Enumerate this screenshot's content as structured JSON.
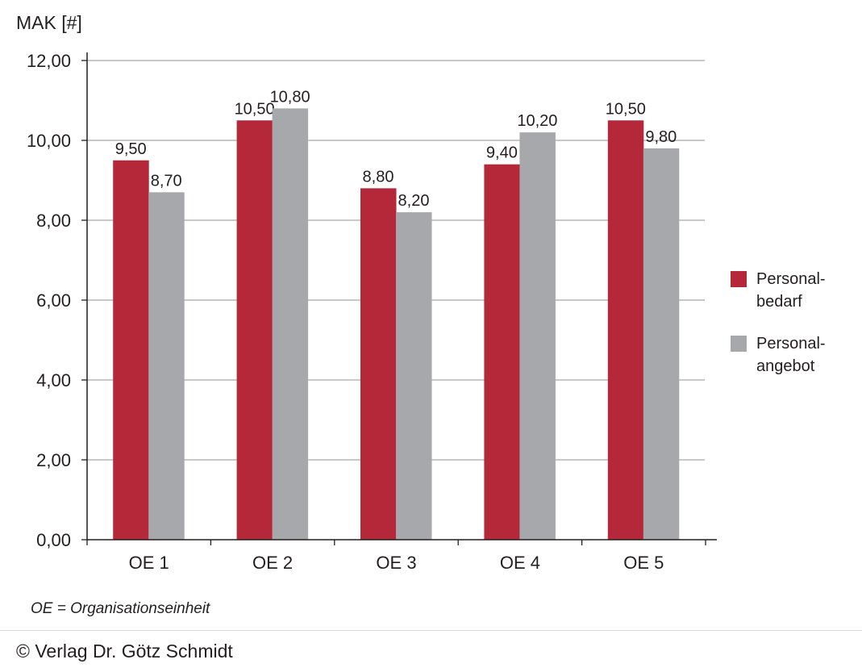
{
  "chart_data": {
    "type": "bar",
    "ylabel": "MAK [#]",
    "categories": [
      "OE 1",
      "OE 2",
      "OE 3",
      "OE 4",
      "OE 5"
    ],
    "series": [
      {
        "name": "Personal-\nbedarf",
        "color": "#b5283a",
        "values": [
          9.5,
          10.5,
          8.8,
          9.4,
          10.5
        ],
        "labels": [
          "9,50",
          "10,50",
          "8,80",
          "9,40",
          "10,50"
        ]
      },
      {
        "name": "Personal-\nangebot",
        "color": "#a7a8ac",
        "values": [
          8.7,
          10.8,
          8.2,
          10.2,
          9.8
        ],
        "labels": [
          "8,70",
          "10,80",
          "8,20",
          "10,20",
          "9,80"
        ]
      }
    ],
    "yticks": [
      0,
      2,
      4,
      6,
      8,
      10,
      12
    ],
    "ytick_labels": [
      "0,00",
      "2,00",
      "4,00",
      "6,00",
      "8,00",
      "10,00",
      "12,00"
    ],
    "ylim": [
      0,
      12
    ],
    "grid": true,
    "legend": "right"
  },
  "footnote": "OE = Organisationseinheit",
  "copyright": "© Verlag Dr. Götz Schmidt"
}
